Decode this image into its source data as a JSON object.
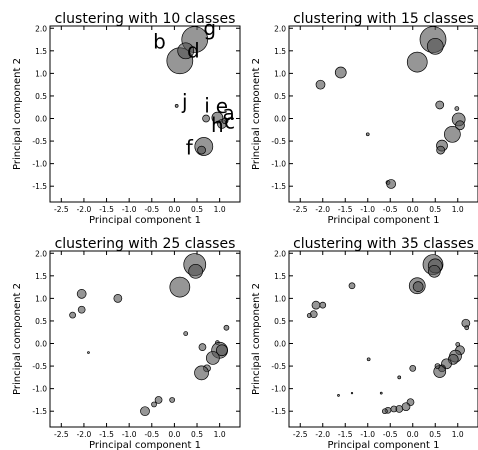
{
  "chart_data": [
    {
      "type": "scatter",
      "title": "clustering with 10 classes",
      "xlabel": "Principal component 1",
      "ylabel": "Principal component 2",
      "xlim": [
        -2.75,
        1.45
      ],
      "ylim": [
        -1.85,
        2.05
      ],
      "xticks": [
        "-2.5",
        "-2.0",
        "-1.5",
        "-1.0",
        "-0.5",
        "0.0",
        "0.5",
        "1.0"
      ],
      "yticks": [
        "2.0",
        "1.5",
        "1.0",
        "0.5",
        "0.0",
        "-0.5",
        "-1.0",
        "-1.5"
      ],
      "points": [
        {
          "x": 0.45,
          "y": 1.75,
          "r": 13
        },
        {
          "x": 0.12,
          "y": 1.28,
          "r": 13
        },
        {
          "x": 0.25,
          "y": 1.5,
          "r": 8
        },
        {
          "x": 0.05,
          "y": 0.28,
          "r": 1.5
        },
        {
          "x": 0.7,
          "y": 0.0,
          "r": 3.5
        },
        {
          "x": 0.95,
          "y": 0.02,
          "r": 5.5
        },
        {
          "x": 1.05,
          "y": -0.12,
          "r": 4.5
        },
        {
          "x": 1.12,
          "y": -0.05,
          "r": 3
        },
        {
          "x": 0.65,
          "y": -0.62,
          "r": 9
        },
        {
          "x": 0.6,
          "y": -0.7,
          "r": 4
        }
      ],
      "labels": [
        {
          "text": "g",
          "x": 0.78,
          "y": 1.85
        },
        {
          "text": "b",
          "x": -0.33,
          "y": 1.55
        },
        {
          "text": "d",
          "x": 0.42,
          "y": 1.35
        },
        {
          "text": "j",
          "x": 0.23,
          "y": 0.22
        },
        {
          "text": "i",
          "x": 0.72,
          "y": 0.13
        },
        {
          "text": "e",
          "x": 1.05,
          "y": 0.12
        },
        {
          "text": "a",
          "x": 1.2,
          "y": -0.03
        },
        {
          "text": "h",
          "x": 0.95,
          "y": -0.3
        },
        {
          "text": "c",
          "x": 1.22,
          "y": -0.22
        },
        {
          "text": "f",
          "x": 0.33,
          "y": -0.8
        }
      ]
    },
    {
      "type": "scatter",
      "title": "clustering with 15 classes",
      "xlabel": "Principal component 1",
      "ylabel": "Principal component 2",
      "xlim": [
        -2.75,
        1.45
      ],
      "ylim": [
        -1.85,
        2.05
      ],
      "xticks": [
        "-2.5",
        "-2.0",
        "-1.5",
        "-1.0",
        "-0.5",
        "0.0",
        "0.5",
        "1.0"
      ],
      "yticks": [
        "2.0",
        "1.5",
        "1.0",
        "0.5",
        "0.0",
        "-0.5",
        "-1.0",
        "-1.5"
      ],
      "points": [
        {
          "x": 0.45,
          "y": 1.75,
          "r": 13
        },
        {
          "x": 0.5,
          "y": 1.6,
          "r": 8
        },
        {
          "x": 0.1,
          "y": 1.25,
          "r": 10
        },
        {
          "x": -1.6,
          "y": 1.02,
          "r": 5.5
        },
        {
          "x": -2.05,
          "y": 0.75,
          "r": 4.5
        },
        {
          "x": 0.6,
          "y": 0.3,
          "r": 4
        },
        {
          "x": 0.98,
          "y": 0.22,
          "r": 2
        },
        {
          "x": 1.02,
          "y": -0.02,
          "r": 6.5
        },
        {
          "x": 1.05,
          "y": -0.15,
          "r": 4.5
        },
        {
          "x": 0.88,
          "y": -0.35,
          "r": 8
        },
        {
          "x": 0.65,
          "y": -0.6,
          "r": 5.5
        },
        {
          "x": 0.62,
          "y": -0.7,
          "r": 4
        },
        {
          "x": -1.0,
          "y": -0.35,
          "r": 1.5
        },
        {
          "x": -0.55,
          "y": -1.42,
          "r": 2
        },
        {
          "x": -0.48,
          "y": -1.45,
          "r": 4.5
        }
      ]
    },
    {
      "type": "scatter",
      "title": "clustering with 25 classes",
      "xlabel": "Principal component 1",
      "ylabel": "Principal component 2",
      "xlim": [
        -2.75,
        1.45
      ],
      "ylim": [
        -1.85,
        2.05
      ],
      "xticks": [
        "-2.5",
        "-2.0",
        "-1.5",
        "-1.0",
        "-0.5",
        "0.0",
        "0.5",
        "1.0"
      ],
      "yticks": [
        "2.0",
        "1.5",
        "1.0",
        "0.5",
        "0.0",
        "-0.5",
        "-1.0",
        "-1.5"
      ],
      "points": [
        {
          "x": 0.45,
          "y": 1.75,
          "r": 11
        },
        {
          "x": 0.47,
          "y": 1.6,
          "r": 7
        },
        {
          "x": 0.12,
          "y": 1.25,
          "r": 10
        },
        {
          "x": -1.25,
          "y": 1.0,
          "r": 4
        },
        {
          "x": -2.05,
          "y": 1.1,
          "r": 4.5
        },
        {
          "x": -2.05,
          "y": 0.75,
          "r": 3.5
        },
        {
          "x": -2.25,
          "y": 0.63,
          "r": 3
        },
        {
          "x": -1.9,
          "y": -0.2,
          "r": 1
        },
        {
          "x": 0.25,
          "y": 0.22,
          "r": 2
        },
        {
          "x": 1.15,
          "y": 0.35,
          "r": 2.5
        },
        {
          "x": 0.95,
          "y": 0.02,
          "r": 2
        },
        {
          "x": 1.0,
          "y": -0.15,
          "r": 8
        },
        {
          "x": 1.05,
          "y": -0.15,
          "r": 5.5
        },
        {
          "x": 0.85,
          "y": -0.32,
          "r": 6.5
        },
        {
          "x": 0.62,
          "y": -0.08,
          "r": 3.5
        },
        {
          "x": 0.72,
          "y": -0.55,
          "r": 3.5
        },
        {
          "x": 0.6,
          "y": -0.65,
          "r": 7
        },
        {
          "x": -0.05,
          "y": -1.25,
          "r": 2.5
        },
        {
          "x": -0.35,
          "y": -1.25,
          "r": 3.5
        },
        {
          "x": -0.45,
          "y": -1.35,
          "r": 2.5
        },
        {
          "x": -0.65,
          "y": -1.5,
          "r": 4.5
        }
      ]
    },
    {
      "type": "scatter",
      "title": "clustering with 35 classes",
      "xlabel": "Principal component 1",
      "ylabel": "Principal component 2",
      "xlim": [
        -2.75,
        1.45
      ],
      "ylim": [
        -1.85,
        2.05
      ],
      "xticks": [
        "-2.5",
        "-2.0",
        "-1.5",
        "-1.0",
        "-0.5",
        "0.0",
        "0.5",
        "1.0"
      ],
      "yticks": [
        "2.0",
        "1.5",
        "1.0",
        "0.5",
        "0.0",
        "-0.5",
        "-1.0",
        "-1.5"
      ],
      "points": [
        {
          "x": 0.45,
          "y": 1.75,
          "r": 10
        },
        {
          "x": 0.5,
          "y": 1.72,
          "r": 7
        },
        {
          "x": 0.48,
          "y": 1.6,
          "r": 6
        },
        {
          "x": 0.1,
          "y": 1.28,
          "r": 8
        },
        {
          "x": 0.12,
          "y": 1.26,
          "r": 5
        },
        {
          "x": -1.35,
          "y": 1.28,
          "r": 3
        },
        {
          "x": -2.15,
          "y": 0.85,
          "r": 4
        },
        {
          "x": -2.0,
          "y": 0.85,
          "r": 3
        },
        {
          "x": -2.2,
          "y": 0.65,
          "r": 3.5
        },
        {
          "x": -2.3,
          "y": 0.62,
          "r": 2
        },
        {
          "x": 1.18,
          "y": 0.45,
          "r": 4
        },
        {
          "x": 1.2,
          "y": 0.35,
          "r": 2
        },
        {
          "x": 1.0,
          "y": -0.02,
          "r": 2
        },
        {
          "x": 1.05,
          "y": -0.15,
          "r": 4.5
        },
        {
          "x": 0.95,
          "y": -0.28,
          "r": 6
        },
        {
          "x": 0.9,
          "y": -0.35,
          "r": 5
        },
        {
          "x": 0.75,
          "y": -0.45,
          "r": 5
        },
        {
          "x": 0.65,
          "y": -0.55,
          "r": 3.5
        },
        {
          "x": 0.6,
          "y": -0.62,
          "r": 6
        },
        {
          "x": 0.55,
          "y": -0.5,
          "r": 2.5
        },
        {
          "x": 0.0,
          "y": -0.55,
          "r": 3
        },
        {
          "x": -0.98,
          "y": -0.35,
          "r": 1.5
        },
        {
          "x": -0.3,
          "y": -0.75,
          "r": 1.5
        },
        {
          "x": -0.7,
          "y": -1.1,
          "r": 1
        },
        {
          "x": -1.35,
          "y": -1.1,
          "r": 0.8
        },
        {
          "x": -1.65,
          "y": -1.15,
          "r": 1
        },
        {
          "x": -0.05,
          "y": -1.3,
          "r": 3.5
        },
        {
          "x": -0.15,
          "y": -1.4,
          "r": 4
        },
        {
          "x": -0.3,
          "y": -1.45,
          "r": 3.5
        },
        {
          "x": -0.42,
          "y": -1.45,
          "r": 3
        },
        {
          "x": -0.55,
          "y": -1.48,
          "r": 3
        },
        {
          "x": -0.62,
          "y": -1.5,
          "r": 2.5
        }
      ]
    }
  ]
}
